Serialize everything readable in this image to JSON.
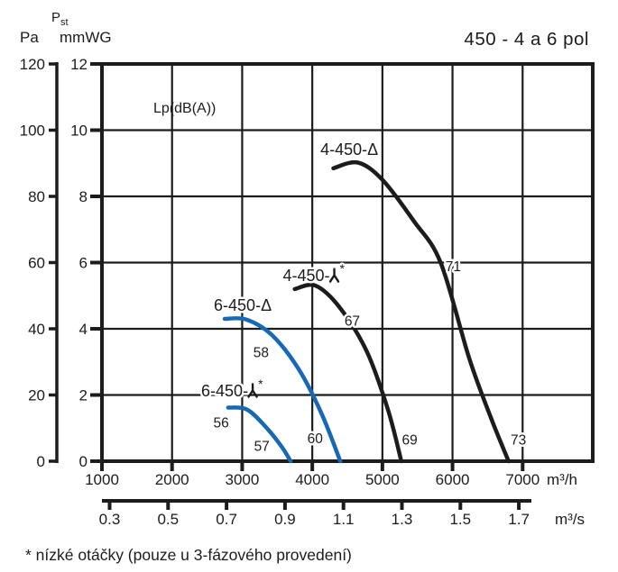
{
  "title": "450 - 4 a 6 pol",
  "footnote": "* nízké otáčky (pouze u 3-fázového provedení)",
  "axes": {
    "pressure_symbol_main": "P",
    "pressure_symbol_sub": "st",
    "pressure_unit_left": "Pa",
    "pressure_unit_right": "mmWG",
    "flow_unit_top": "m³/h",
    "flow_unit_bottom": "m³/s",
    "pa_ticks": [
      120,
      100,
      80,
      60,
      40,
      20,
      0
    ],
    "mmwg_ticks": [
      12,
      10,
      8,
      6,
      4,
      2,
      0
    ],
    "m3h_ticks": [
      1000,
      2000,
      3000,
      4000,
      5000,
      6000,
      7000
    ],
    "m3s_ticks": [
      "0.3",
      "0.5",
      "0.7",
      "0.9",
      "1.1",
      "1.3",
      "1.5",
      "1.7"
    ]
  },
  "colors": {
    "ink": "#1c1c1c",
    "blue": "#1769b5"
  },
  "chart_data": {
    "type": "line",
    "title": "450 - 4 a 6 pol",
    "xlabel": "m³/h",
    "x2label": "m³/s",
    "ylabel": "Pst (Pa / mmWG)",
    "xlim": [
      1000,
      8000
    ],
    "ylim": [
      0,
      12
    ],
    "grid": true,
    "legend_position": "on-curve",
    "annotation": "Lp(dB(A))",
    "series": [
      {
        "name": "4-450-D (delta)",
        "color": "#1c1c1c",
        "points": [
          [
            4300,
            8.85
          ],
          [
            4650,
            9.02
          ],
          [
            5000,
            8.5
          ],
          [
            5450,
            7.25
          ],
          [
            5830,
            6.0
          ],
          [
            6240,
            3.1
          ],
          [
            6550,
            1.3
          ],
          [
            6800,
            0
          ]
        ],
        "label": {
          "text_before": "4-450-",
          "symbol": "delta",
          "asterisk": false,
          "anchor_x": 4115,
          "anchor_y": 9.25
        },
        "db_labels": [
          {
            "value": "71",
            "x": 6010,
            "y": 5.85
          },
          {
            "value": "73",
            "x": 6940,
            "y": 0.62
          }
        ]
      },
      {
        "name": "4-450-Y* (star, low speed)",
        "color": "#1c1c1c",
        "points": [
          [
            3750,
            5.2
          ],
          [
            4050,
            5.3
          ],
          [
            4400,
            4.62
          ],
          [
            4780,
            3.3
          ],
          [
            5080,
            1.55
          ],
          [
            5270,
            0
          ]
        ],
        "label": {
          "text_before": "4-450-",
          "symbol": "wye",
          "asterisk": true,
          "anchor_x": 3580,
          "anchor_y": 5.44
        },
        "db_labels": [
          {
            "value": "67",
            "x": 4570,
            "y": 4.2
          },
          {
            "value": "69",
            "x": 5390,
            "y": 0.62
          }
        ]
      },
      {
        "name": "6-450-D (delta)",
        "color": "#1769b5",
        "points": [
          [
            2750,
            4.3
          ],
          [
            3060,
            4.28
          ],
          [
            3420,
            3.82
          ],
          [
            3800,
            2.8
          ],
          [
            4130,
            1.45
          ],
          [
            4400,
            0
          ]
        ],
        "label": {
          "text_before": "6-450-",
          "symbol": "delta",
          "asterisk": false,
          "anchor_x": 2596,
          "anchor_y": 4.54
        },
        "db_labels": [
          {
            "value": "58",
            "x": 3270,
            "y": 3.25
          },
          {
            "value": "60",
            "x": 4040,
            "y": 0.66
          }
        ]
      },
      {
        "name": "6-450-Y* (star, low speed)",
        "color": "#1769b5",
        "points": [
          [
            2800,
            1.62
          ],
          [
            3070,
            1.56
          ],
          [
            3330,
            1.05
          ],
          [
            3560,
            0.45
          ],
          [
            3690,
            0
          ]
        ],
        "label": {
          "text_before": "6-450-",
          "symbol": "wye",
          "asterisk": true,
          "anchor_x": 2416,
          "anchor_y": 1.96
        },
        "db_labels": [
          {
            "value": "56",
            "x": 2700,
            "y": 1.13
          },
          {
            "value": "57",
            "x": 3280,
            "y": 0.42
          }
        ]
      }
    ]
  }
}
